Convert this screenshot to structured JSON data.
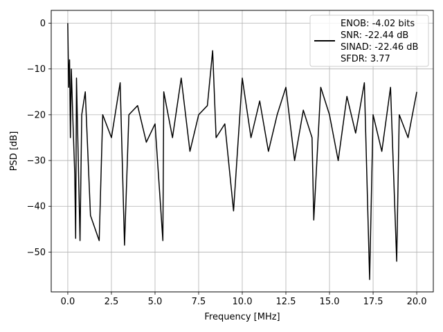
{
  "chart_data": {
    "type": "line",
    "title": "",
    "xlabel": "Frequency [MHz]",
    "ylabel": "PSD [dB]",
    "xlim": [
      -0.95,
      20.95
    ],
    "ylim": [
      -58.7,
      2.8
    ],
    "grid": true,
    "x_ticks": [
      0.0,
      2.5,
      5.0,
      7.5,
      10.0,
      12.5,
      15.0,
      17.5,
      20.0
    ],
    "x_tick_labels": [
      "0.0",
      "2.5",
      "5.0",
      "7.5",
      "10.0",
      "12.5",
      "15.0",
      "17.5",
      "20.0"
    ],
    "y_ticks": [
      0,
      -10,
      -20,
      -30,
      -40,
      -50
    ],
    "y_tick_labels": [
      "0",
      "−10",
      "−20",
      "−30",
      "−40",
      "−50"
    ],
    "legend": {
      "placement": "top-right",
      "entries": [
        "ENOB: -4.02 bits",
        "SNR: -22.44 dB",
        "SINAD: -22.46 dB",
        "SFDR: 3.77"
      ]
    },
    "series": [
      {
        "color": "#000000",
        "x": [
          0.0,
          0.05,
          0.1,
          0.15,
          0.2,
          0.3,
          0.4,
          0.45,
          0.5,
          0.6,
          0.7,
          0.8,
          1.0,
          1.3,
          1.8,
          2.0,
          2.5,
          3.0,
          3.25,
          3.5,
          4.0,
          4.5,
          5.0,
          5.45,
          5.5,
          6.0,
          6.5,
          7.0,
          7.5,
          8.0,
          8.3,
          8.5,
          9.0,
          9.5,
          10.0,
          10.5,
          11.0,
          11.5,
          12.0,
          12.5,
          13.0,
          13.5,
          14.0,
          14.1,
          14.5,
          15.0,
          15.5,
          16.0,
          16.5,
          17.0,
          17.3,
          17.5,
          18.0,
          18.5,
          18.85,
          19.0,
          19.5,
          20.0
        ],
        "values": [
          0.0,
          -14.0,
          -8.0,
          -25.0,
          -10.0,
          -22.0,
          -33.0,
          -47.0,
          -12.0,
          -30.0,
          -47.5,
          -20.0,
          -15.0,
          -42.0,
          -47.5,
          -20.0,
          -25.0,
          -13.0,
          -48.5,
          -20.0,
          -18.0,
          -26.0,
          -22.0,
          -47.5,
          -15.0,
          -25.0,
          -12.0,
          -28.0,
          -20.0,
          -18.0,
          -6.0,
          -25.0,
          -22.0,
          -41.0,
          -12.0,
          -25.0,
          -17.0,
          -28.0,
          -20.0,
          -14.0,
          -30.0,
          -19.0,
          -25.0,
          -43.0,
          -14.0,
          -20.0,
          -30.0,
          -16.0,
          -24.0,
          -13.0,
          -56.0,
          -20.0,
          -28.0,
          -14.0,
          -52.0,
          -20.0,
          -25.0,
          -15.0
        ]
      }
    ]
  }
}
